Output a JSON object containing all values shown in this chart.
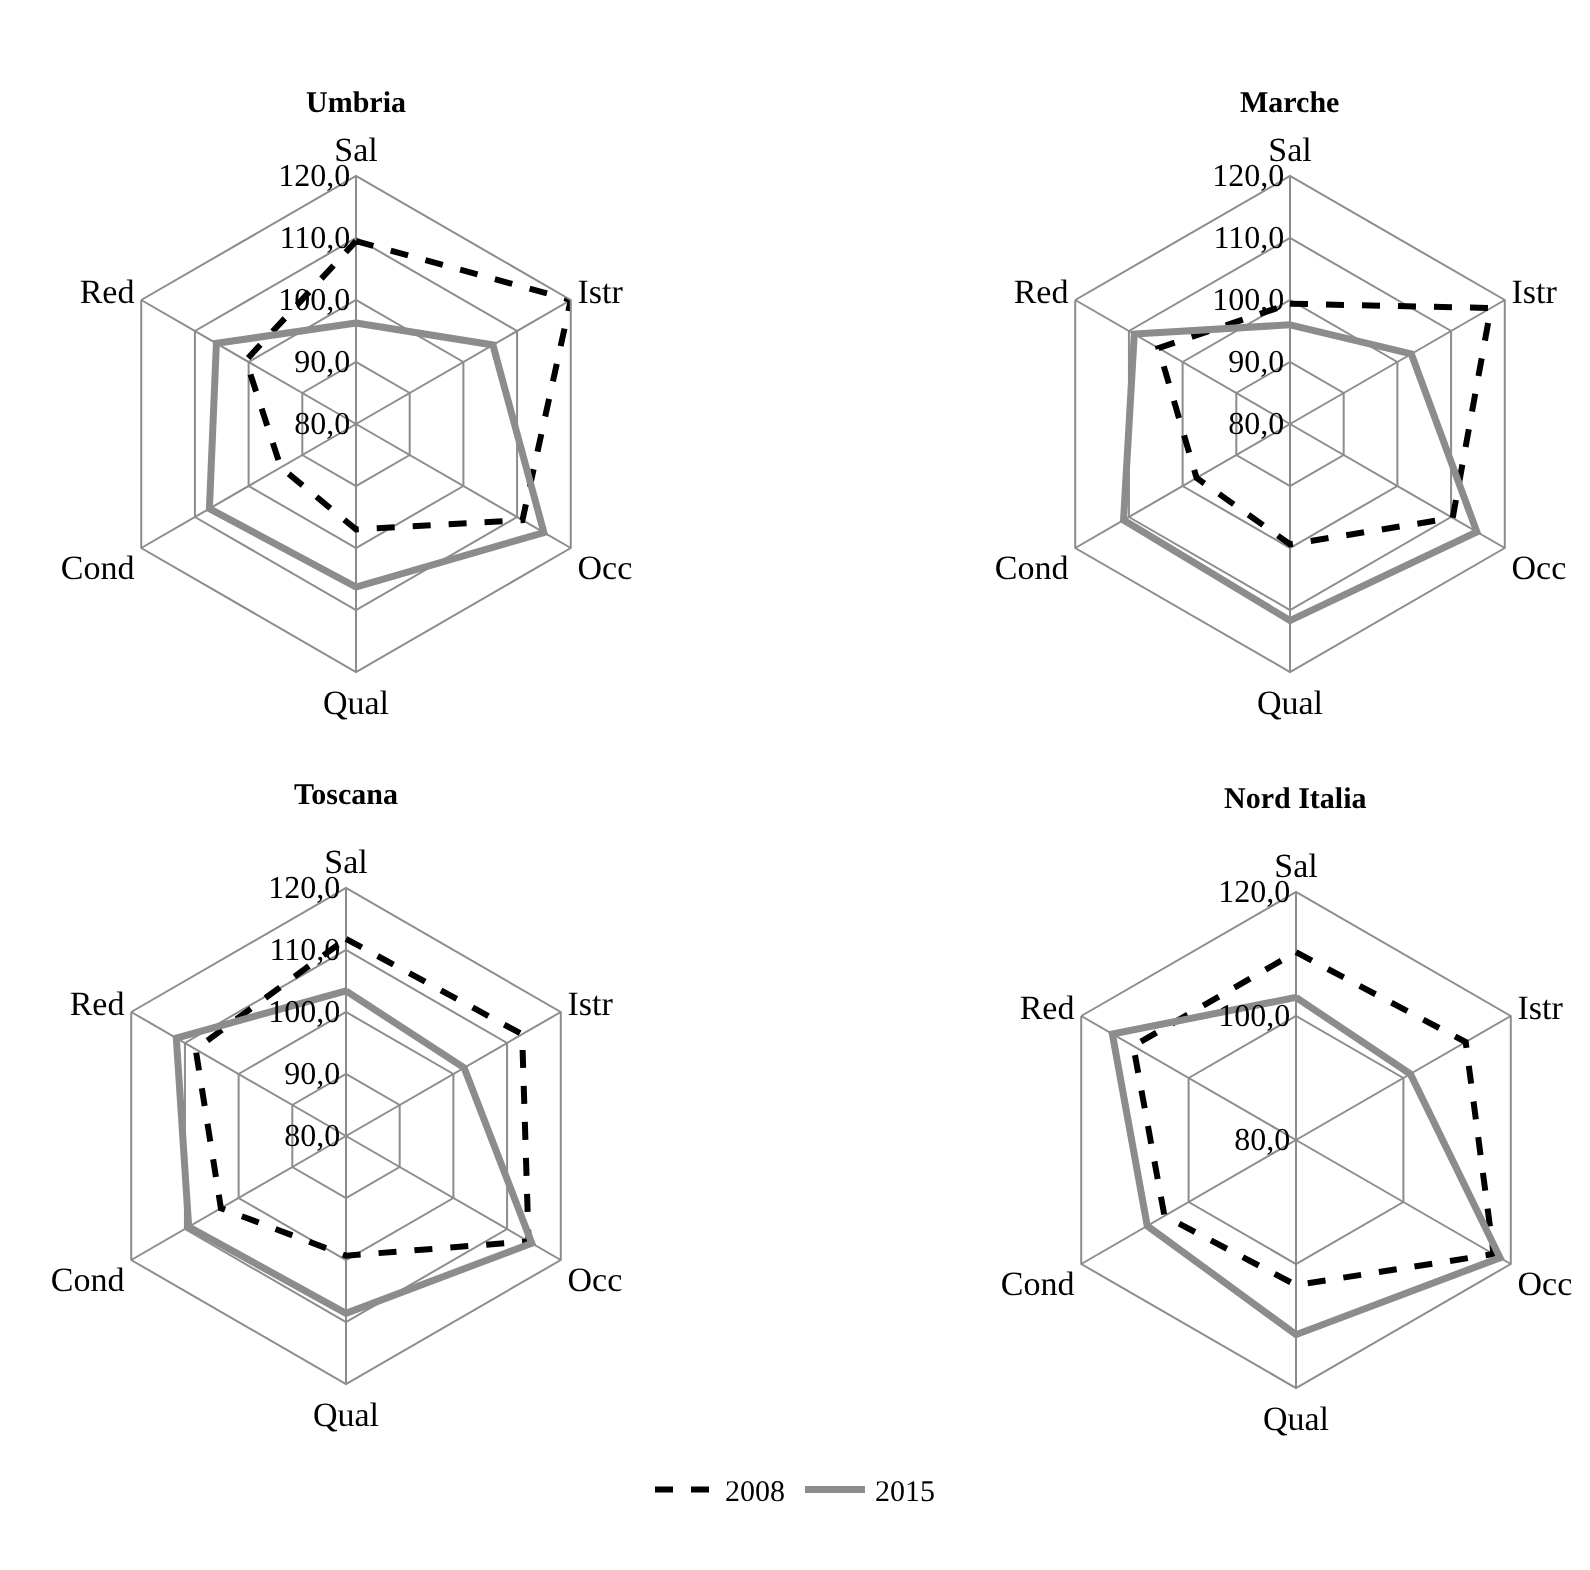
{
  "chart_data": [
    {
      "type": "radar",
      "title": "Umbria",
      "categories": [
        "Sal",
        "Istr",
        "Occ",
        "Qual",
        "Cond",
        "Red"
      ],
      "ylim": [
        80,
        120
      ],
      "yticks": [
        {
          "value": 80,
          "label": "80,0"
        },
        {
          "value": 90,
          "label": "90,0"
        },
        {
          "value": 100,
          "label": "100,0"
        },
        {
          "value": 110,
          "label": "110,0"
        },
        {
          "value": 120,
          "label": "120,0"
        }
      ],
      "grid": true,
      "legend": "bottom",
      "series": [
        {
          "name": "2008",
          "color": "#000000",
          "line_style": "dashed",
          "values": [
            109.5,
            120,
            111,
            97,
            94,
            100.5
          ]
        },
        {
          "name": "2015",
          "color": "#8c8c8c",
          "line_style": "solid",
          "values": [
            96.3,
            105.5,
            115,
            106.3,
            107.3,
            106
          ]
        }
      ]
    },
    {
      "type": "radar",
      "title": "Marche",
      "categories": [
        "Sal",
        "Istr",
        "Occ",
        "Qual",
        "Cond",
        "Red"
      ],
      "ylim": [
        80,
        120
      ],
      "yticks": [
        {
          "value": 80,
          "label": "80,0"
        },
        {
          "value": 90,
          "label": "90,0"
        },
        {
          "value": 100,
          "label": "100,0"
        },
        {
          "value": 110,
          "label": "110,0"
        },
        {
          "value": 120,
          "label": "120,0"
        }
      ],
      "grid": true,
      "legend": "bottom",
      "series": [
        {
          "name": "2008",
          "color": "#000000",
          "line_style": "dashed",
          "values": [
            99.4,
            117.4,
            110.3,
            99.4,
            97.4,
            104.5
          ]
        },
        {
          "name": "2015",
          "color": "#8c8c8c",
          "line_style": "solid",
          "values": [
            96,
            102.6,
            114.8,
            111.7,
            111,
            109
          ]
        }
      ]
    },
    {
      "type": "radar",
      "title": "Toscana",
      "categories": [
        "Sal",
        "Istr",
        "Occ",
        "Qual",
        "Cond",
        "Red"
      ],
      "ylim": [
        80,
        120
      ],
      "yticks": [
        {
          "value": 80,
          "label": "80,0"
        },
        {
          "value": 90,
          "label": "90,0"
        },
        {
          "value": 100,
          "label": "100,0"
        },
        {
          "value": 110,
          "label": "110,0"
        },
        {
          "value": 120,
          "label": "120,0"
        }
      ],
      "grid": true,
      "legend": "bottom",
      "series": [
        {
          "name": "2008",
          "color": "#000000",
          "line_style": "dashed",
          "values": [
            111.8,
            112.8,
            114,
            99.3,
            103.3,
            108
          ]
        },
        {
          "name": "2015",
          "color": "#8c8c8c",
          "line_style": "solid",
          "values": [
            103.4,
            102,
            114.6,
            108.6,
            109.3,
            111.6
          ]
        }
      ]
    },
    {
      "type": "radar",
      "title": "Nord Italia",
      "categories": [
        "Sal",
        "Istr",
        "Occ",
        "Qual",
        "Cond",
        "Red"
      ],
      "ylim": [
        80,
        120
      ],
      "yticks": [
        {
          "value": 80,
          "label": "80,0"
        },
        {
          "value": 100,
          "label": "100,0"
        },
        {
          "value": 120,
          "label": "120,0"
        }
      ],
      "grid": true,
      "legend": "bottom",
      "series": [
        {
          "name": "2008",
          "color": "#000000",
          "line_style": "dashed",
          "values": [
            110.3,
            111.6,
            116.8,
            103.4,
            104.5,
            110.3
          ]
        },
        {
          "name": "2015",
          "color": "#8c8c8c",
          "line_style": "solid",
          "values": [
            103,
            101.3,
            118,
            111.4,
            107.7,
            114.2
          ]
        }
      ]
    }
  ]
}
